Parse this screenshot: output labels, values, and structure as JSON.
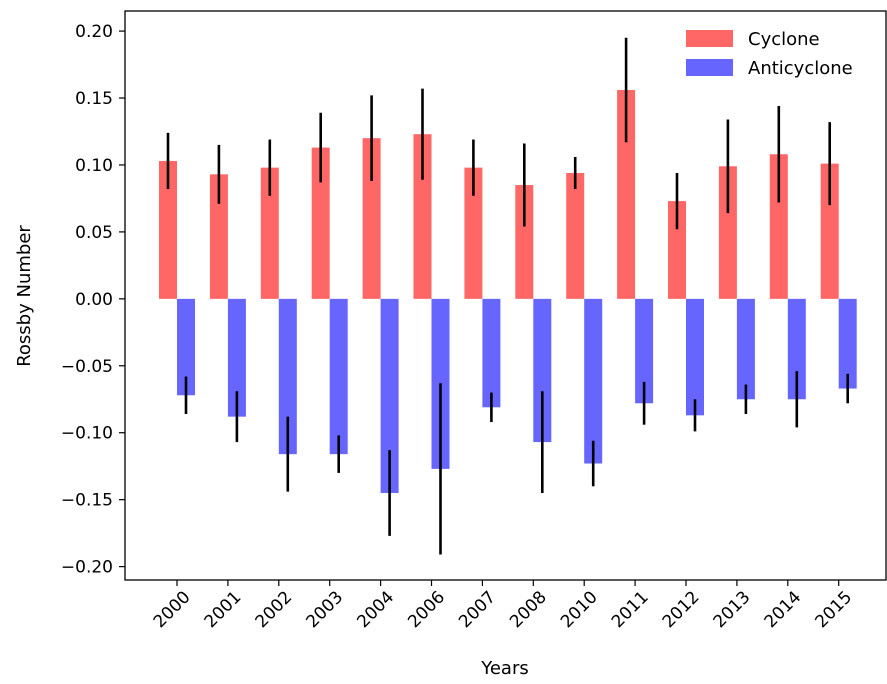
{
  "chart_data": {
    "type": "bar",
    "xlabel": "Years",
    "ylabel": "Rossby Number",
    "ylim": [
      -0.21,
      0.215
    ],
    "yticks": [
      0.2,
      0.15,
      0.1,
      0.05,
      0.0,
      -0.05,
      -0.1,
      -0.15,
      -0.2
    ],
    "ytick_labels": [
      "0.20",
      "0.15",
      "0.10",
      "0.05",
      "0.00",
      "−0.05",
      "−0.10",
      "−0.15",
      "−0.20"
    ],
    "categories": [
      "2000",
      "2001",
      "2002",
      "2003",
      "2004",
      "2006",
      "2007",
      "2008",
      "2010",
      "2011",
      "2012",
      "2013",
      "2014",
      "2015"
    ],
    "series": [
      {
        "name": "Cyclone",
        "color": "#ff6666",
        "values": [
          0.103,
          0.093,
          0.098,
          0.113,
          0.12,
          0.123,
          0.098,
          0.085,
          0.094,
          0.156,
          0.073,
          0.099,
          0.108,
          0.101
        ],
        "errors": [
          0.021,
          0.022,
          0.021,
          0.026,
          0.032,
          0.034,
          0.021,
          0.031,
          0.012,
          0.039,
          0.021,
          0.035,
          0.036,
          0.031
        ]
      },
      {
        "name": "Anticyclone",
        "color": "#6666ff",
        "values": [
          -0.072,
          -0.088,
          -0.116,
          -0.116,
          -0.145,
          -0.127,
          -0.081,
          -0.107,
          -0.123,
          -0.078,
          -0.087,
          -0.075,
          -0.075,
          -0.067
        ],
        "errors": [
          0.014,
          0.019,
          0.028,
          0.014,
          0.032,
          0.064,
          0.011,
          0.038,
          0.017,
          0.016,
          0.012,
          0.011,
          0.021,
          0.011
        ]
      }
    ],
    "error_bar_color": "#000000",
    "legend_position": "top-right",
    "grid": false
  }
}
